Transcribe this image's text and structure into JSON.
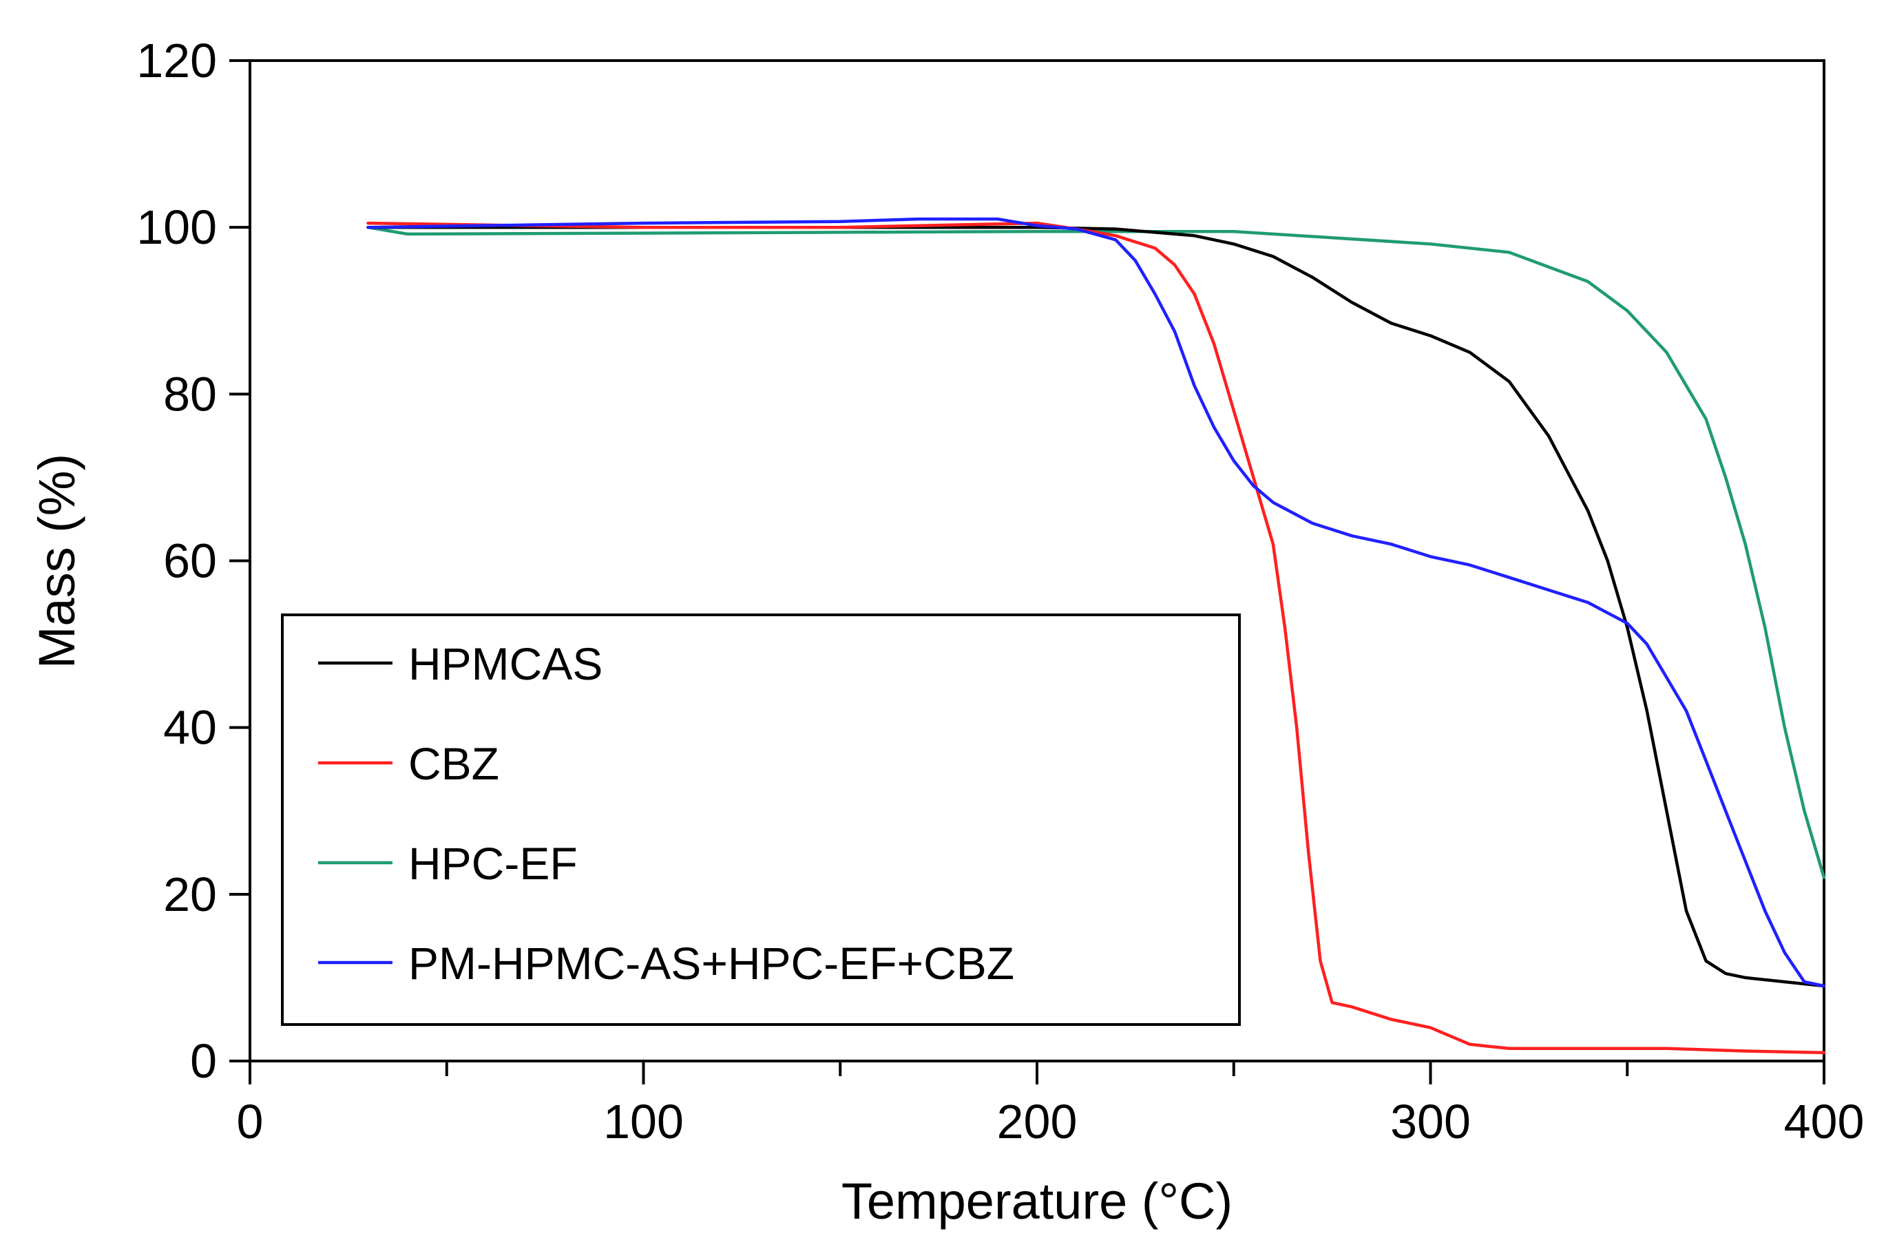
{
  "chart_data": {
    "type": "line",
    "title": "",
    "xlabel": "Temperature (°C)",
    "ylabel": "Mass (%)",
    "xlim": [
      0,
      400
    ],
    "ylim": [
      0,
      120
    ],
    "xticks": [
      0,
      100,
      200,
      300,
      400
    ],
    "yticks": [
      0,
      20,
      40,
      60,
      80,
      100,
      120
    ],
    "legend": "bottom-left",
    "series": [
      {
        "name": "HPMCAS",
        "color": "#000000",
        "x": [
          30,
          50,
          100,
          150,
          200,
          220,
          240,
          250,
          260,
          270,
          280,
          290,
          300,
          310,
          320,
          330,
          340,
          345,
          350,
          355,
          360,
          365,
          370,
          375,
          380,
          390,
          400
        ],
        "y": [
          100,
          100,
          100,
          100,
          100,
          99.8,
          99,
          98,
          96.5,
          94,
          91,
          88.5,
          87,
          85,
          81.5,
          75,
          66,
          60,
          52,
          42,
          30,
          18,
          12,
          10.5,
          10,
          9.5,
          9
        ]
      },
      {
        "name": "CBZ",
        "color": "#ff2020",
        "x": [
          30,
          100,
          150,
          200,
          210,
          220,
          230,
          235,
          240,
          245,
          250,
          255,
          260,
          263,
          266,
          269,
          272,
          275,
          280,
          290,
          300,
          310,
          320,
          340,
          360,
          380,
          400
        ],
        "y": [
          100.5,
          100,
          100,
          100.5,
          99.8,
          99,
          97.5,
          95.5,
          92,
          86,
          78,
          70,
          62,
          52,
          40,
          25,
          12,
          7,
          6.5,
          5,
          4,
          2,
          1.5,
          1.5,
          1.5,
          1.2,
          1
        ]
      },
      {
        "name": "HPC-EF",
        "color": "#1f9b74",
        "x": [
          30,
          40,
          100,
          200,
          250,
          300,
          320,
          340,
          350,
          360,
          370,
          375,
          380,
          385,
          390,
          395,
          400
        ],
        "y": [
          100,
          99.2,
          99.3,
          99.5,
          99.5,
          98,
          97,
          93.5,
          90,
          85,
          77,
          70,
          62,
          52,
          40,
          30,
          22
        ]
      },
      {
        "name": "PM-HPMC-AS+HPC-EF+CBZ",
        "color": "#2020ff",
        "x": [
          30,
          100,
          150,
          170,
          190,
          200,
          210,
          220,
          225,
          230,
          235,
          240,
          245,
          250,
          255,
          260,
          270,
          280,
          290,
          300,
          310,
          320,
          330,
          340,
          350,
          355,
          360,
          365,
          370,
          375,
          380,
          385,
          390,
          395,
          400
        ],
        "y": [
          100,
          100.5,
          100.7,
          101,
          101,
          100.2,
          99.8,
          98.5,
          96,
          92,
          87.5,
          81,
          76,
          72,
          69,
          67,
          64.5,
          63,
          62,
          60.5,
          59.5,
          58,
          56.5,
          55,
          52.5,
          50,
          46,
          42,
          36,
          30,
          24,
          18,
          13,
          9.5,
          9
        ]
      }
    ]
  }
}
